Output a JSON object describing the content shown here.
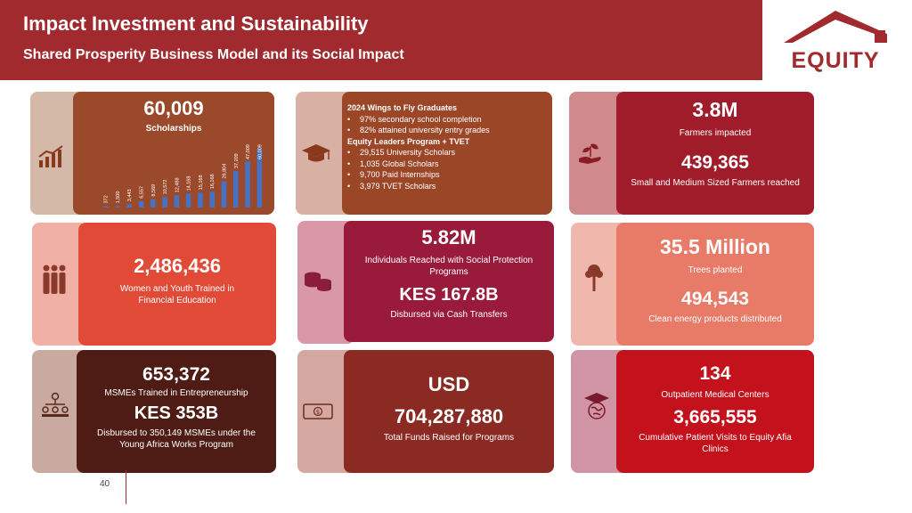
{
  "header": {
    "title": "Impact Investment and Sustainability",
    "subtitle": "Shared Prosperity Business Model and its Social Impact"
  },
  "logo": {
    "text": "EQUITY"
  },
  "page_number": "40",
  "cards": {
    "scholarships": {
      "value": "60,009",
      "label": "Scholarships",
      "bar_labels": [
        "372",
        "1,500",
        "3,443",
        "6,557",
        "8,569",
        "10,572",
        "12,488",
        "14,168",
        "15,168",
        "16,168",
        "26,804",
        "37,209",
        "47,009",
        "60,009"
      ]
    },
    "wings": {
      "heading1": "2024 Wings to Fly Graduates",
      "items1": [
        "97% secondary school completion",
        "82% attained university entry grades"
      ],
      "heading2": "Equity Leaders Program + TVET",
      "items2": [
        "29,515 University Scholars",
        "1,035 Global Scholars",
        "9,700 Paid Internships",
        "3,979 TVET Scholars"
      ]
    },
    "farmers": {
      "value1": "3.8M",
      "label1": "Farmers impacted",
      "value2": "439,365",
      "label2": "Small and Medium Sized Farmers reached"
    },
    "women": {
      "value": "2,486,436",
      "label": "Women and Youth Trained in Financial Education"
    },
    "social": {
      "value1": "5.82M",
      "label1": "Individuals Reached with Social Protection Programs",
      "value2": "KES 167.8B",
      "label2": "Disbursed via Cash Transfers"
    },
    "trees": {
      "value1": "35.5 Million",
      "label1": "Trees planted",
      "value2": "494,543",
      "label2": "Clean energy products distributed"
    },
    "msme": {
      "value1": "653,372",
      "label1": "MSMEs Trained in Entrepreneurship",
      "value2": "KES 353B",
      "label2": "Disbursed to 350,149 MSMEs under the Young Africa Works Program"
    },
    "funds": {
      "value1": "USD",
      "value2": "704,287,880",
      "label": "Total Funds Raised for Programs"
    },
    "medical": {
      "value1": "134",
      "label1": "Outpatient Medical Centers",
      "value2": "3,665,555",
      "label2": "Cumulative Patient Visits to Equity Afia Clinics"
    }
  },
  "colors": {
    "header": "#a12a2e",
    "scholarship_panel": "#9a4a2a",
    "wings_panel": "#9c4628",
    "farmers_panel": "#a01c2a",
    "women_panel": "#e04a37",
    "social_panel": "#9a1a3c",
    "trees_panel": "#e87a68",
    "msme_panel": "#4e1c14",
    "funds_panel": "#8a2a22",
    "medical_panel": "#c4121c",
    "bar": "#4472c4"
  }
}
